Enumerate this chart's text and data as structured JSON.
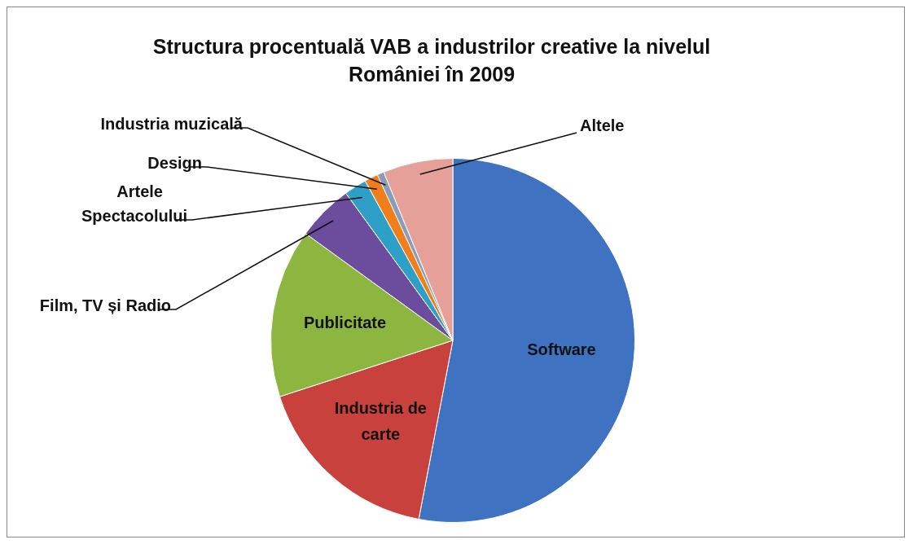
{
  "chart_data": {
    "type": "pie",
    "title": "Structura procentuală VAB a industrilor creative la nivelul României în 2009",
    "categories": [
      "Software",
      "Industria de carte",
      "Publicitate",
      "Film, TV și Radio",
      "Artele Spectacolului",
      "Design",
      "Industria muzicală",
      "Altele"
    ],
    "values": [
      53,
      17,
      15,
      5,
      2,
      1.2,
      0.6,
      6.2
    ],
    "colors": [
      "#3f72c0",
      "#c9413c",
      "#8db641",
      "#6c4c9c",
      "#2e9fc6",
      "#f07f1b",
      "#8c9bb8",
      "#e6a09a"
    ],
    "legend": false
  }
}
